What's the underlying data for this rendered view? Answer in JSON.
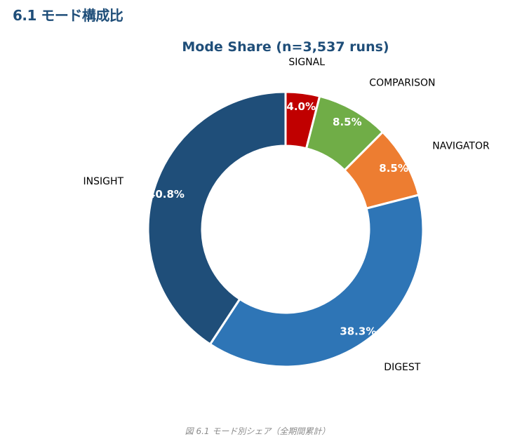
{
  "heading": "6.1 モード構成比",
  "caption": "図 6.1 モード別シェア（全期間累計）",
  "chart_data": {
    "type": "pie",
    "variant": "donut",
    "title": "Mode Share (n=3,537 runs)",
    "start": "top, clockwise",
    "slices": [
      {
        "label": "SIGNAL",
        "value": 4.0,
        "pct_label": "4.0%",
        "color": "#c00000"
      },
      {
        "label": "COMPARISON",
        "value": 8.5,
        "pct_label": "8.5%",
        "color": "#70ad47"
      },
      {
        "label": "NAVIGATOR",
        "value": 8.5,
        "pct_label": "8.5%",
        "color": "#ed7d31"
      },
      {
        "label": "DIGEST",
        "value": 38.3,
        "pct_label": "38.3%",
        "color": "#2e75b6"
      },
      {
        "label": "INSIGHT",
        "value": 40.8,
        "pct_label": "40.8%",
        "color": "#1f4e79"
      }
    ],
    "title_color": "#1f4e79"
  }
}
